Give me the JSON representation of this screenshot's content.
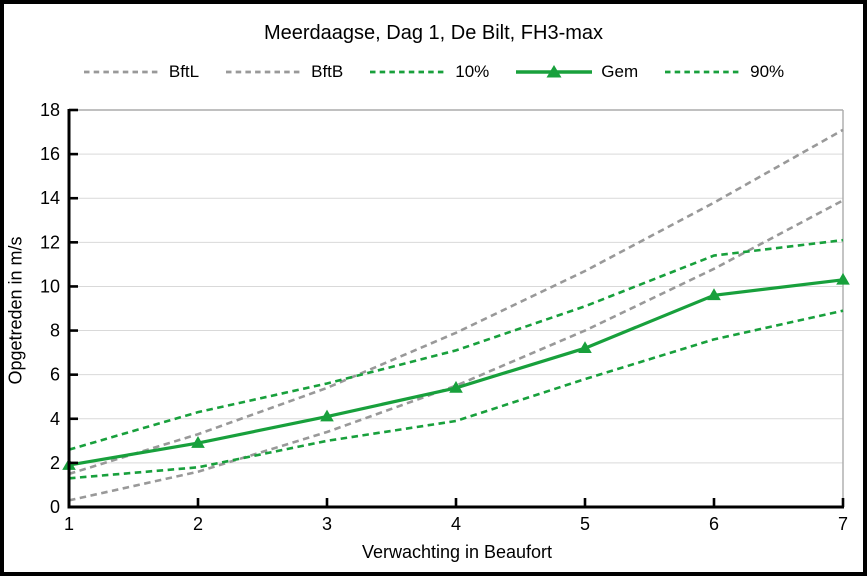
{
  "title": "Meerdaagse, Dag 1, De Bilt, FH3-max",
  "colors": {
    "green": "#18A03C",
    "gray": "#999999",
    "grid": "#D9D9D9",
    "frame": "#ABABAB",
    "axis": "#000000",
    "text": "#000000"
  },
  "legend": {
    "items": [
      {
        "label": "BftL",
        "color": "gray",
        "style": "dashed",
        "marker": null
      },
      {
        "label": "BftB",
        "color": "gray",
        "style": "dashed",
        "marker": null
      },
      {
        "label": "10%",
        "color": "green",
        "style": "dashed",
        "marker": null
      },
      {
        "label": "Gem",
        "color": "green",
        "style": "solid",
        "marker": "triangle-up"
      },
      {
        "label": "90%",
        "color": "green",
        "style": "dashed",
        "marker": null
      }
    ]
  },
  "chart_data": {
    "type": "line",
    "title": "Meerdaagse, Dag 1, De Bilt, FH3-max",
    "xlabel": "Verwachting in Beaufort",
    "ylabel": "Opgetreden in m/s",
    "x": [
      1,
      2,
      3,
      4,
      5,
      6,
      7
    ],
    "xlim": [
      1,
      7
    ],
    "ylim": [
      0,
      18
    ],
    "xticks": [
      1,
      2,
      3,
      4,
      5,
      6,
      7
    ],
    "yticks": [
      0,
      2,
      4,
      6,
      8,
      10,
      12,
      14,
      16,
      18
    ],
    "grid": "horizontal",
    "legend_position": "top",
    "series": [
      {
        "name": "BftL",
        "color": "gray",
        "style": "dashed",
        "marker": null,
        "values": [
          0.3,
          1.6,
          3.4,
          5.5,
          8.0,
          10.8,
          13.9
        ]
      },
      {
        "name": "BftB",
        "color": "gray",
        "style": "dashed",
        "marker": null,
        "values": [
          1.5,
          3.3,
          5.4,
          7.9,
          10.7,
          13.8,
          17.1
        ]
      },
      {
        "name": "10%",
        "color": "green",
        "style": "dashed",
        "marker": null,
        "values": [
          1.3,
          1.8,
          3.0,
          3.9,
          5.8,
          7.6,
          8.9
        ]
      },
      {
        "name": "Gem",
        "color": "green",
        "style": "solid",
        "marker": "triangle-up",
        "values": [
          1.9,
          2.9,
          4.1,
          5.4,
          7.2,
          9.6,
          10.3
        ]
      },
      {
        "name": "90%",
        "color": "green",
        "style": "dashed",
        "marker": null,
        "values": [
          2.6,
          4.3,
          5.6,
          7.1,
          9.1,
          11.4,
          12.1
        ]
      }
    ]
  }
}
